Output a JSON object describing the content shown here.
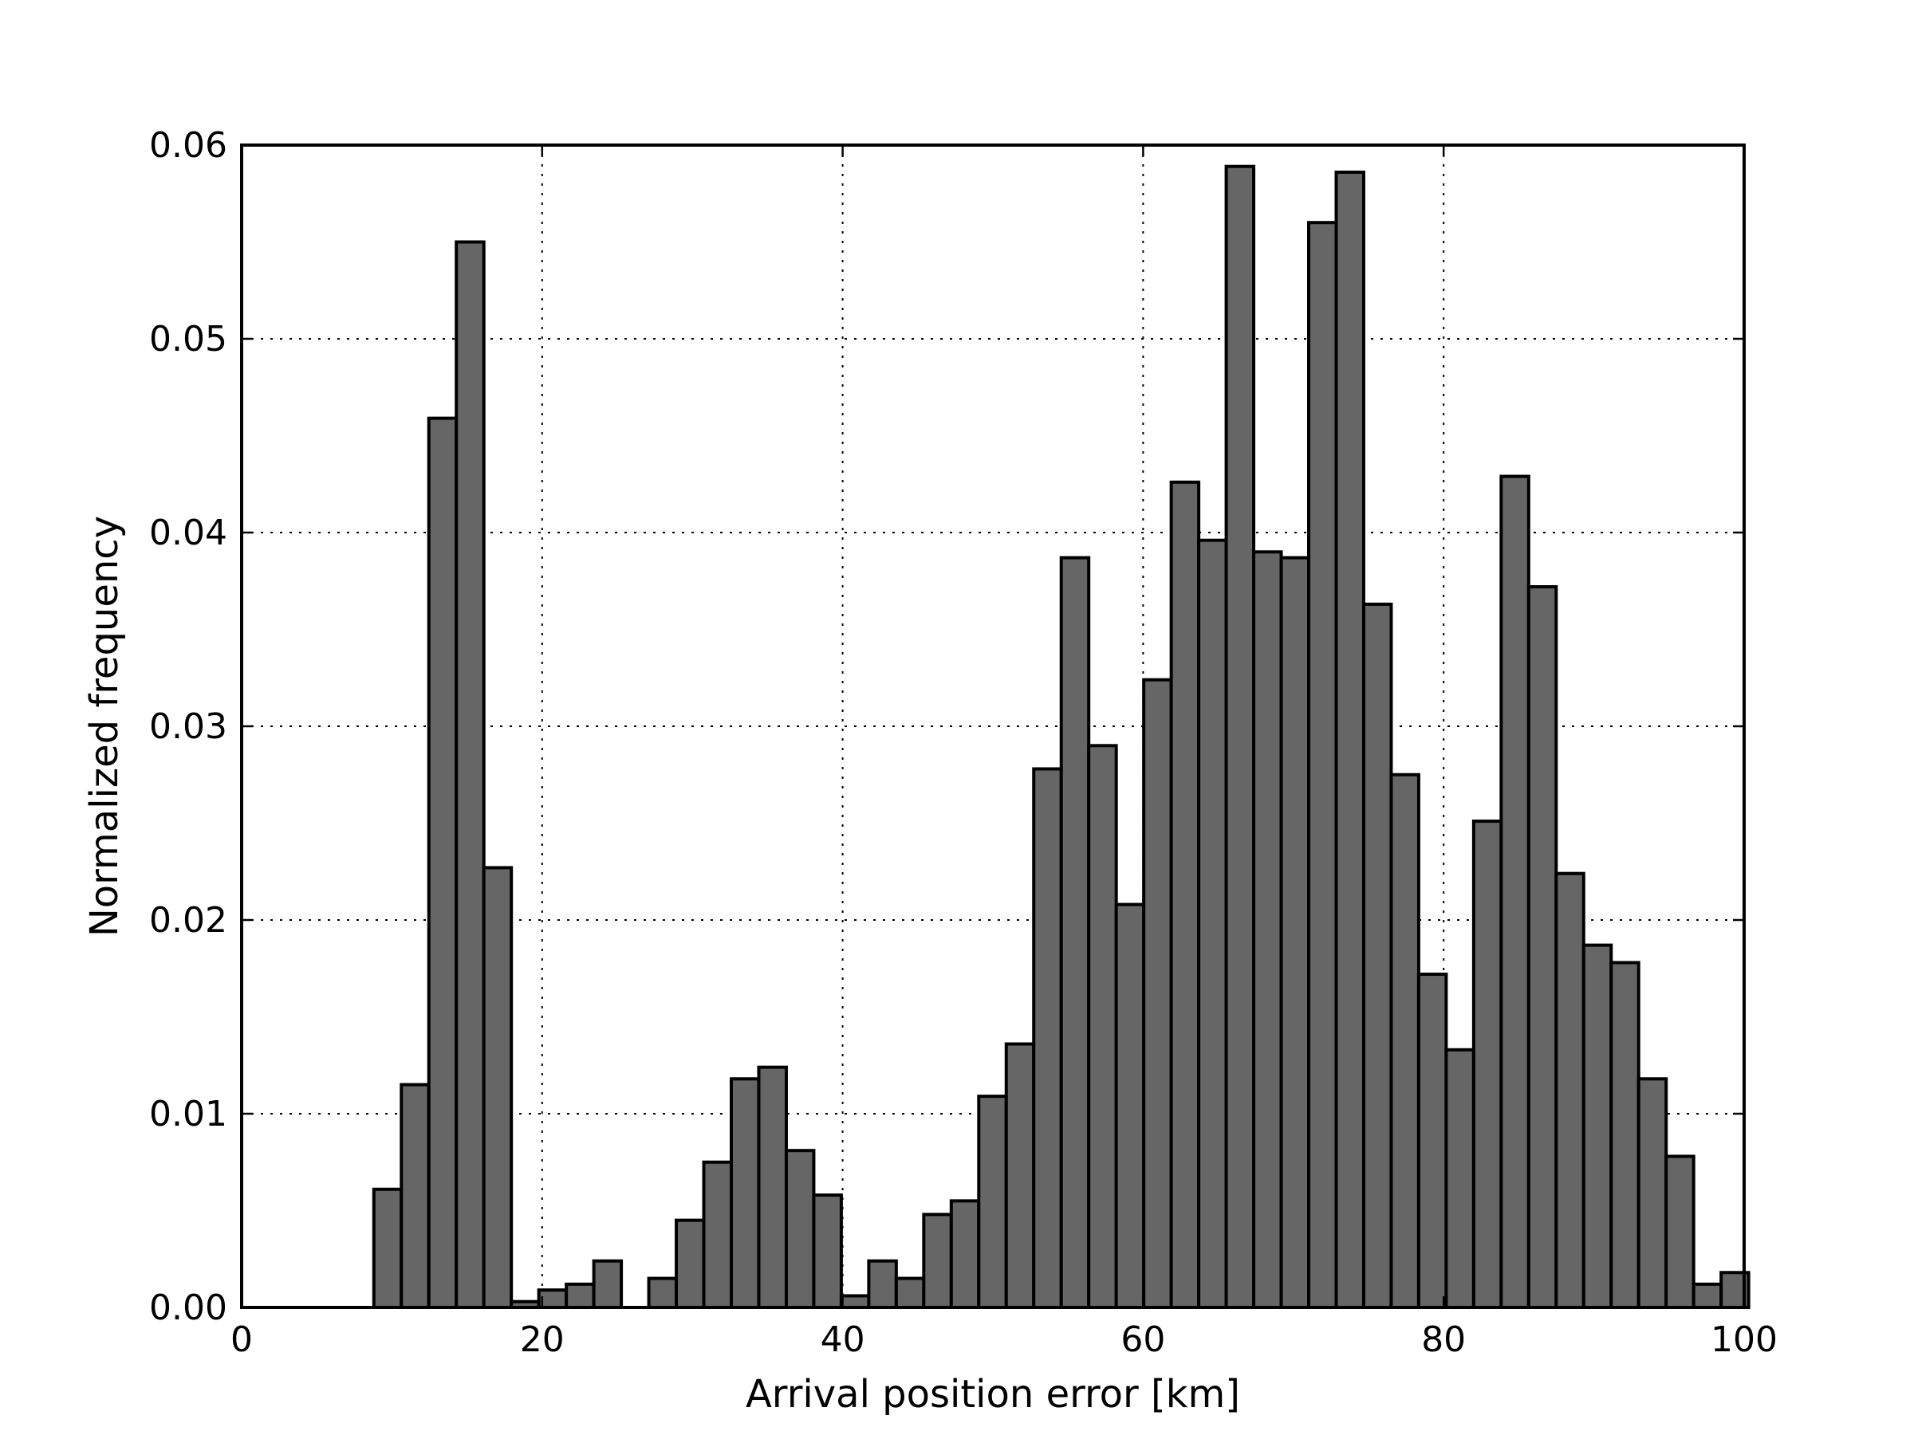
{
  "chart_data": {
    "type": "bar",
    "title": "",
    "xlabel": "Arrival position error [km]",
    "ylabel": "Normalized frequency",
    "xlim": [
      0,
      100
    ],
    "ylim": [
      0,
      0.06
    ],
    "xticks": [
      0,
      20,
      40,
      60,
      80,
      100
    ],
    "xtick_labels": [
      "0",
      "20",
      "40",
      "60",
      "80",
      "100"
    ],
    "yticks": [
      0,
      0.01,
      0.02,
      0.03,
      0.04,
      0.05,
      0.06
    ],
    "ytick_labels": [
      "0.00",
      "0.01",
      "0.02",
      "0.03",
      "0.04",
      "0.05",
      "0.06"
    ],
    "grid": true,
    "bar_color": "#666666",
    "bin_edges": [
      8.8,
      10.63,
      12.46,
      14.29,
      16.12,
      17.95,
      19.78,
      21.61,
      23.44,
      25.27,
      27.1,
      28.93,
      30.76,
      32.59,
      34.42,
      36.25,
      38.08,
      39.91,
      41.74,
      43.57,
      45.4,
      47.23,
      49.06,
      50.89,
      52.72,
      54.55,
      56.38,
      58.21,
      60.04,
      61.87,
      63.7,
      65.53,
      67.36,
      69.19,
      71.02,
      72.85,
      74.68,
      76.51,
      78.34,
      80.17,
      82.0,
      83.83,
      85.66,
      87.49,
      89.32,
      91.15,
      92.98,
      94.81,
      96.64,
      98.47
    ],
    "values": [
      0.0061,
      0.0115,
      0.0459,
      0.055,
      0.0227,
      0.0003,
      0.0009,
      0.0012,
      0.0024,
      0.0,
      0.0015,
      0.0045,
      0.0075,
      0.0118,
      0.0124,
      0.0081,
      0.0058,
      0.0006,
      0.0024,
      0.0015,
      0.0048,
      0.0055,
      0.0109,
      0.0136,
      0.0278,
      0.0387,
      0.029,
      0.0208,
      0.0324,
      0.0426,
      0.0396,
      0.0589,
      0.039,
      0.0387,
      0.056,
      0.0586,
      0.0363,
      0.0275,
      0.0172,
      0.0133,
      0.0251,
      0.0429,
      0.0372,
      0.0224,
      0.0187,
      0.0178,
      0.0118,
      0.0078,
      0.0012,
      0.0018
    ]
  }
}
